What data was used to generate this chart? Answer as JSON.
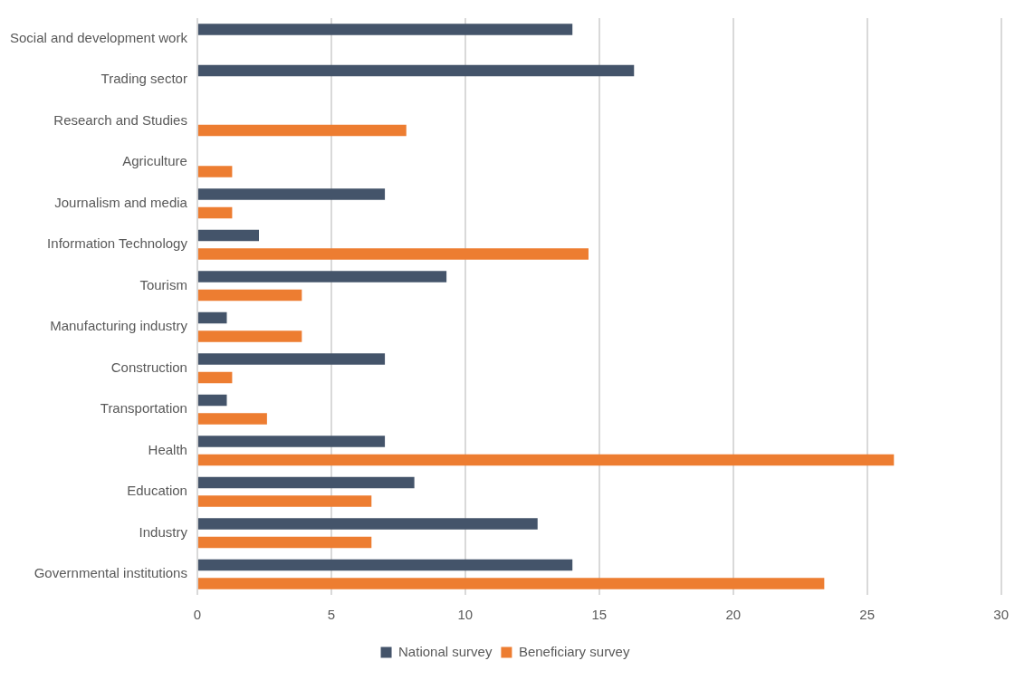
{
  "chart_data": {
    "type": "bar",
    "orientation": "horizontal",
    "categories": [
      "Social and development work",
      "Trading sector",
      "Research and Studies",
      "Agriculture",
      "Journalism and media",
      "Information Technology",
      "Tourism",
      "Manufacturing industry",
      "Construction",
      "Transportation",
      "Health",
      "Education",
      "Industry",
      "Governmental institutions"
    ],
    "series": [
      {
        "name": "National survey",
        "color": "#44546a",
        "values": [
          14.0,
          16.3,
          null,
          null,
          7.0,
          2.3,
          9.3,
          1.1,
          7.0,
          1.1,
          7.0,
          8.1,
          12.7,
          14.0
        ]
      },
      {
        "name": "Beneficiary survey",
        "color": "#ed7d31",
        "values": [
          null,
          null,
          7.8,
          1.3,
          1.3,
          14.6,
          3.9,
          3.9,
          1.3,
          2.6,
          26.0,
          6.5,
          6.5,
          23.4
        ]
      }
    ],
    "xlim": [
      0,
      30
    ],
    "xticks": [
      0,
      5,
      10,
      15,
      20,
      25,
      30
    ],
    "grid": "x",
    "legend": "bottom"
  }
}
